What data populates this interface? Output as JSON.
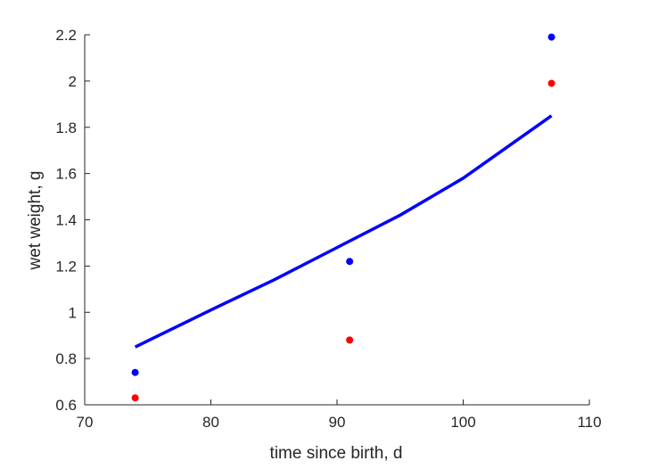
{
  "chart_data": {
    "type": "scatter",
    "title": "",
    "xlabel": "time since birth, d",
    "ylabel": "wet weight, g",
    "xlim": [
      70,
      110
    ],
    "ylim": [
      0.6,
      2.2
    ],
    "xticks": [
      70,
      80,
      90,
      100,
      110
    ],
    "xtick_labels": [
      "70",
      "80",
      "90",
      "100",
      "110"
    ],
    "yticks": [
      0.6,
      0.8,
      1.0,
      1.2,
      1.4,
      1.6,
      1.8,
      2.0,
      2.2
    ],
    "ytick_labels": [
      "0.6",
      "0.8",
      "1",
      "1.2",
      "1.4",
      "1.6",
      "1.8",
      "2",
      "2.2"
    ],
    "grid": false,
    "series": [
      {
        "kind": "scatter",
        "color": "#0000ff",
        "x": [
          74,
          91,
          107
        ],
        "y": [
          0.74,
          1.22,
          2.19
        ]
      },
      {
        "kind": "scatter",
        "color": "#ff0000",
        "x": [
          74,
          91,
          107
        ],
        "y": [
          0.63,
          0.88,
          1.99
        ]
      },
      {
        "kind": "line",
        "color": "#0000ff",
        "x": [
          74,
          80,
          85,
          90,
          95,
          100,
          107
        ],
        "y": [
          0.85,
          1.01,
          1.14,
          1.28,
          1.42,
          1.58,
          1.85
        ]
      }
    ]
  }
}
